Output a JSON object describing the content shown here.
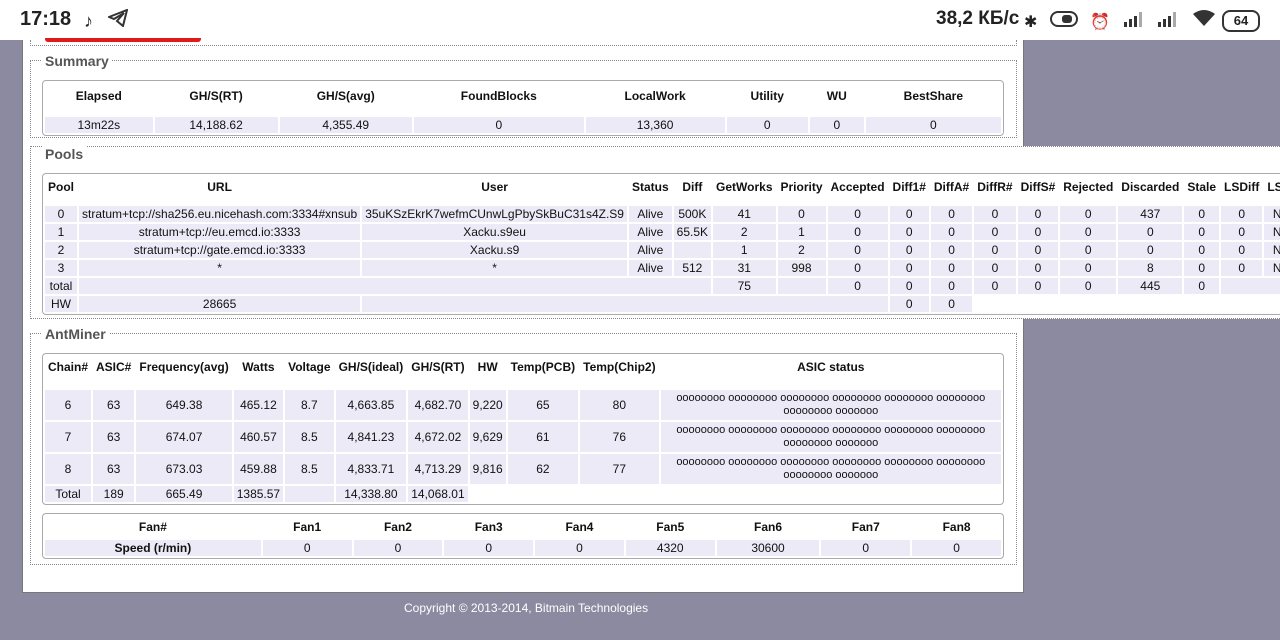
{
  "statusbar": {
    "time": "17:18",
    "speed": "38,2 КБ/с",
    "battery": "64",
    "icons": [
      "tiktok-icon",
      "telegram-icon",
      "bluetooth-icon",
      "toggle-icon",
      "alarm-icon",
      "signal-icon",
      "signal-icon",
      "wifi-icon"
    ]
  },
  "summary": {
    "legend": "Summary",
    "headers": [
      "Elapsed",
      "GH/S(RT)",
      "GH/S(avg)",
      "FoundBlocks",
      "LocalWork",
      "Utility",
      "WU",
      "BestShare"
    ],
    "row": [
      "13m22s",
      "14,188.62",
      "4,355.49",
      "0",
      "13,360",
      "0",
      "0",
      "0"
    ]
  },
  "pools": {
    "legend": "Pools",
    "headers": [
      "Pool",
      "URL",
      "User",
      "Status",
      "Diff",
      "GetWorks",
      "Priority",
      "Accepted",
      "Diff1#",
      "DiffA#",
      "DiffR#",
      "DiffS#",
      "Rejected",
      "Discarded",
      "Stale",
      "LSDiff",
      "LSTime"
    ],
    "rows": [
      [
        "0",
        "stratum+tcp://sha256.eu.nicehash.com:3334#xnsub",
        "35uKSzEkrK7wefmCUnwLgPbySkBuC31s4Z.S9",
        "Alive",
        "500K",
        "41",
        "0",
        "0",
        "0",
        "0",
        "0",
        "0",
        "0",
        "437",
        "0",
        "0",
        "Never"
      ],
      [
        "1",
        "stratum+tcp://eu.emcd.io:3333",
        "Xacku.s9eu",
        "Alive",
        "65.5K",
        "2",
        "1",
        "0",
        "0",
        "0",
        "0",
        "0",
        "0",
        "0",
        "0",
        "0",
        "Never"
      ],
      [
        "2",
        "stratum+tcp://gate.emcd.io:3333",
        "Xacku.s9",
        "Alive",
        "",
        "1",
        "2",
        "0",
        "0",
        "0",
        "0",
        "0",
        "0",
        "0",
        "0",
        "0",
        "Never"
      ],
      [
        "3",
        "*",
        "*",
        "Alive",
        "512",
        "31",
        "998",
        "0",
        "0",
        "0",
        "0",
        "0",
        "0",
        "8",
        "0",
        "0",
        "Never"
      ]
    ],
    "total": {
      "label": "total",
      "getworks": "75",
      "accepted": "0",
      "diff1": "0",
      "diffa": "0",
      "diffr": "0",
      "diffs": "0",
      "rejected": "0",
      "discarded": "445",
      "stale": "0"
    },
    "hw": {
      "label": "HW",
      "value": "28665",
      "diff1": "0",
      "diffa": "0"
    }
  },
  "antminer": {
    "legend": "AntMiner",
    "headers": [
      "Chain#",
      "ASIC#",
      "Frequency(avg)",
      "Watts",
      "Voltage",
      "GH/S(ideal)",
      "GH/S(RT)",
      "HW",
      "Temp(PCB)",
      "Temp(Chip2)",
      "ASIC status"
    ],
    "rows": [
      [
        "6",
        "63",
        "649.38",
        "465.12",
        "8.7",
        "4,663.85",
        "4,682.70",
        "9,220",
        "65",
        "80",
        "oooooooo oooooooo oooooooo oooooooo oooooooo oooooooo oooooooo ooooooo"
      ],
      [
        "7",
        "63",
        "674.07",
        "460.57",
        "8.5",
        "4,841.23",
        "4,672.02",
        "9,629",
        "61",
        "76",
        "oooooooo oooooooo oooooooo oooooooo oooooooo oooooooo oooooooo ooooooo"
      ],
      [
        "8",
        "63",
        "673.03",
        "459.88",
        "8.5",
        "4,833.71",
        "4,713.29",
        "9,816",
        "62",
        "77",
        "oooooooo oooooooo oooooooo oooooooo oooooooo oooooooo oooooooo ooooooo"
      ]
    ],
    "total": {
      "label": "Total",
      "asic": "189",
      "freq": "665.49",
      "watts": "1385.57",
      "ideal": "14,338.80",
      "rt": "14,068.01"
    }
  },
  "fans": {
    "headers": [
      "Fan#",
      "Fan1",
      "Fan2",
      "Fan3",
      "Fan4",
      "Fan5",
      "Fan6",
      "Fan7",
      "Fan8"
    ],
    "row_label": "Speed (r/min)",
    "values": [
      "0",
      "0",
      "0",
      "0",
      "4320",
      "30600",
      "0",
      "0"
    ]
  },
  "footer": {
    "copyright": "Copyright © 2013-2014, Bitmain Technologies"
  }
}
